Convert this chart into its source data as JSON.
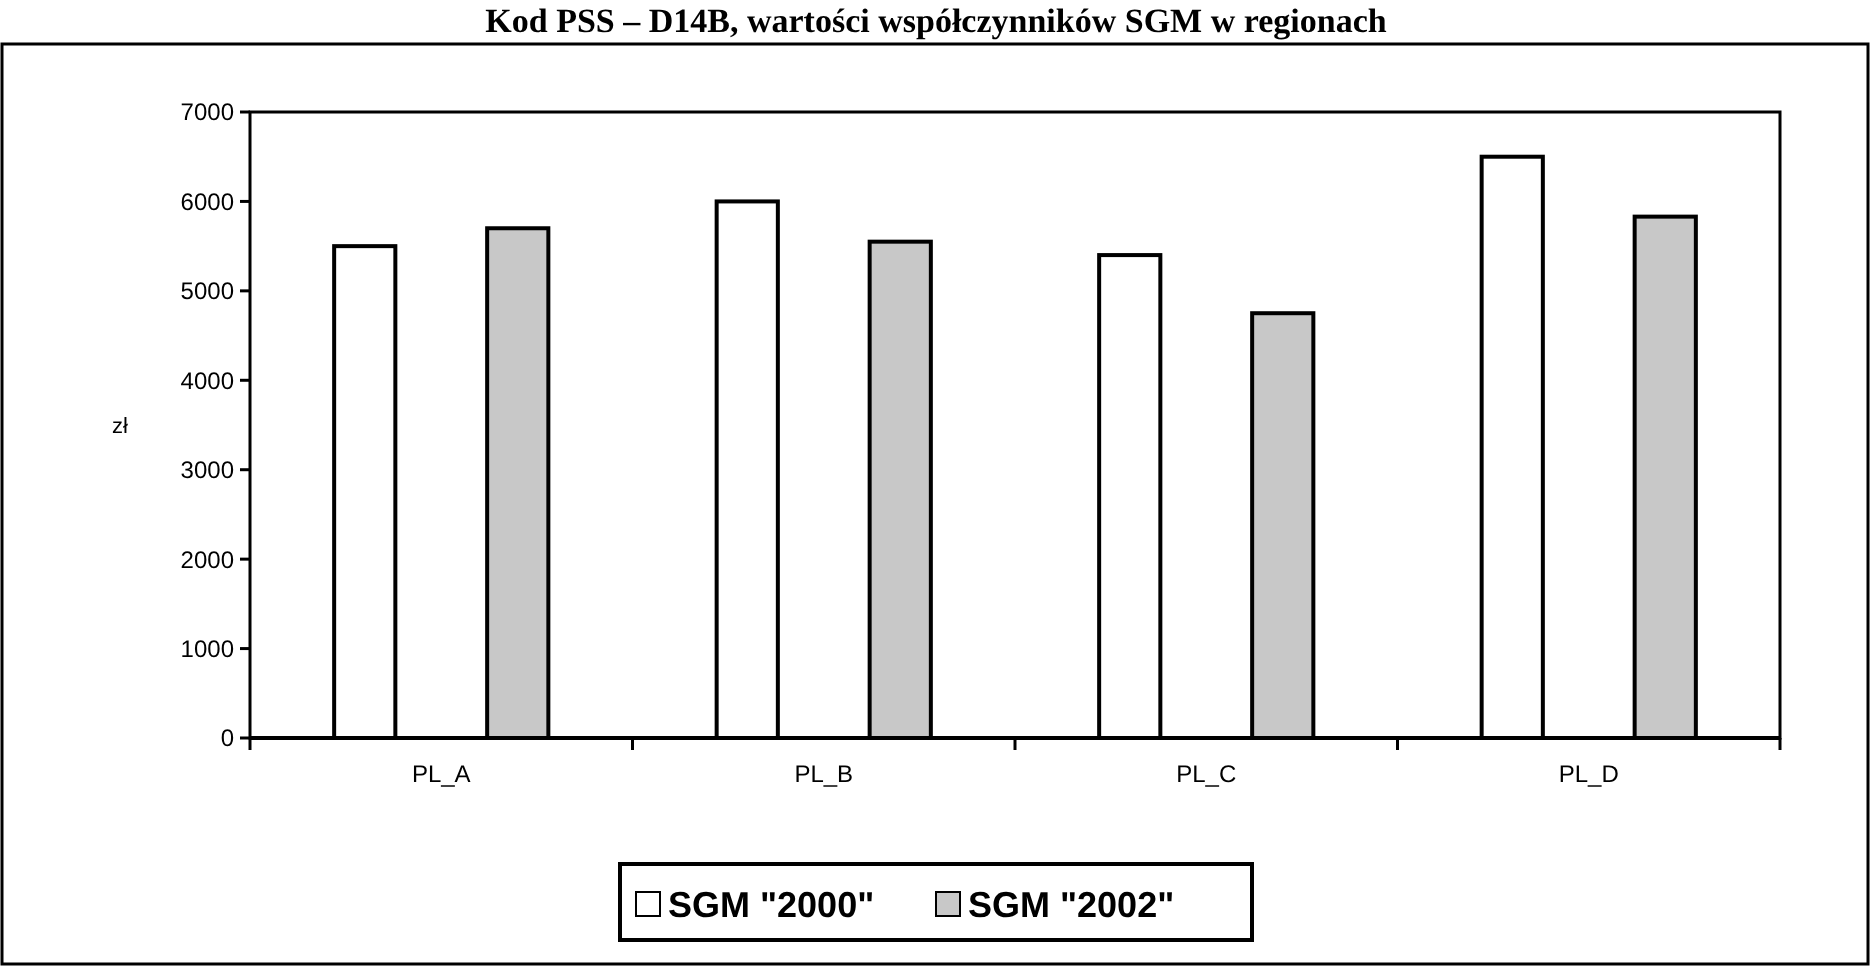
{
  "chart_data": {
    "type": "bar",
    "title": "Kod PSS – D14B, wartości współczynników SGM w regionach",
    "ylabel": "zł",
    "categories": [
      "PL_A",
      "PL_B",
      "PL_C",
      "PL_D"
    ],
    "series": [
      {
        "name": "SGM \"2000\"",
        "color": "#ffffff",
        "values": [
          5500,
          6000,
          5400,
          6500
        ]
      },
      {
        "name": "SGM \"2002\"",
        "color": "#c8c8c8",
        "values": [
          5700,
          5550,
          4750,
          5830
        ]
      }
    ],
    "ylim": [
      0,
      7000
    ],
    "yticks": [
      0,
      1000,
      2000,
      3000,
      4000,
      5000,
      6000,
      7000
    ],
    "grid": false,
    "legend": "bottom"
  }
}
